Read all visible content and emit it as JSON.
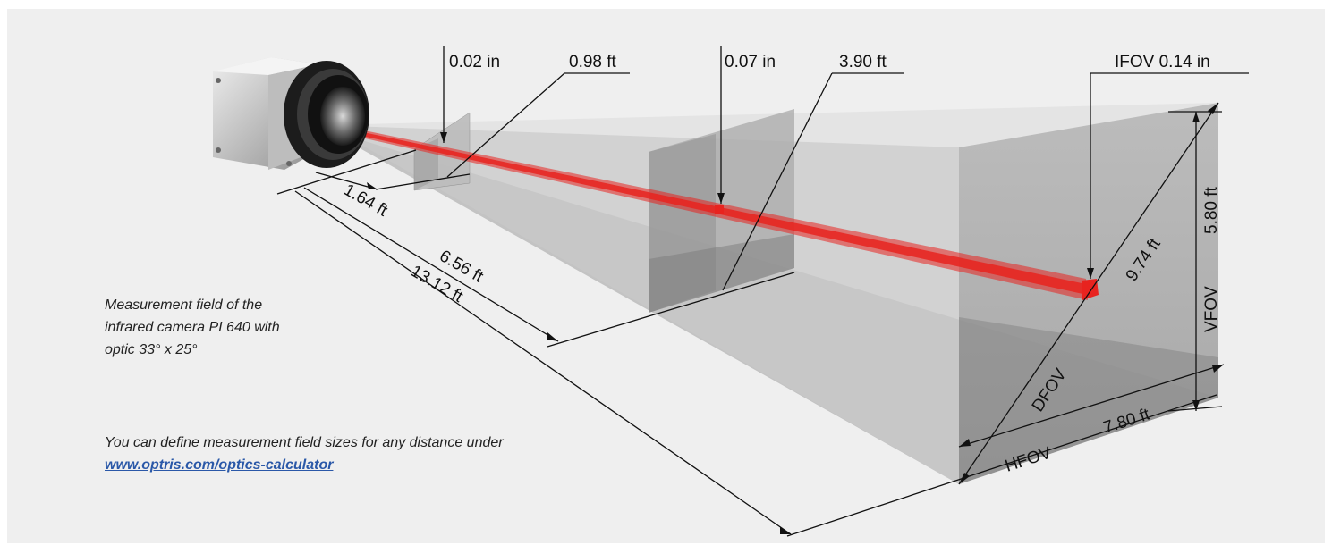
{
  "diagram": {
    "labels": {
      "dist_near": "1.64 ft",
      "dist_mid": "6.56 ft",
      "dist_far": "13.12 ft",
      "ifov_near": "0.02 in",
      "field_near": "0.98 ft",
      "ifov_mid": "0.07 in",
      "field_mid": "3.90 ft",
      "ifov_far": "IFOV 0.14 in",
      "dfov_value": "9.74 ft",
      "vfov_value": "5.80 ft",
      "hfov_value": "7.80 ft",
      "dfov": "DFOV",
      "vfov": "VFOV",
      "hfov": "HFOV"
    }
  },
  "caption": {
    "lines": [
      "Measurement field of the",
      "infrared camera PI 640 with",
      "optic 33° x 25°"
    ]
  },
  "note": {
    "text": "You can define measurement field sizes for any distance under",
    "link": "www.optris.com/optics-calculator"
  },
  "colors": {
    "background": "#efefef",
    "beam": "#e8231f",
    "link": "#2a58a8"
  },
  "icons": {
    "camera": "infrared-camera-icon"
  }
}
